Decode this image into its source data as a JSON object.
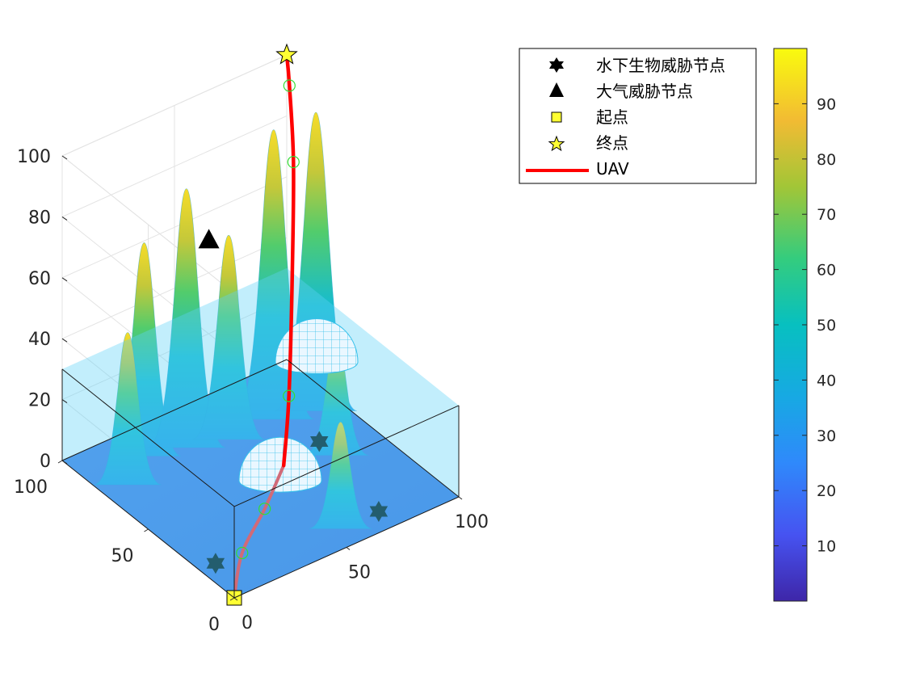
{
  "chart_data": {
    "type": "surface3d",
    "axes": {
      "x_ticks": [
        "0",
        "50",
        "100"
      ],
      "y_ticks": [
        "0",
        "50",
        "100"
      ],
      "z_ticks": [
        "0",
        "20",
        "40",
        "60",
        "80",
        "100"
      ],
      "xlim": [
        0,
        100
      ],
      "ylim": [
        0,
        100
      ],
      "zlim": [
        0,
        100
      ],
      "grid": true
    },
    "water_level": 30,
    "peaks": [
      {
        "x": 10,
        "y": 75,
        "height": 50
      },
      {
        "x": 25,
        "y": 85,
        "height": 70
      },
      {
        "x": 40,
        "y": 80,
        "height": 85
      },
      {
        "x": 55,
        "y": 75,
        "height": 67
      },
      {
        "x": 75,
        "y": 75,
        "height": 95
      },
      {
        "x": 90,
        "y": 70,
        "height": 98
      },
      {
        "x": 55,
        "y": 10,
        "height": 35
      },
      {
        "x": 80,
        "y": 45,
        "height": 40
      }
    ],
    "domes": [
      {
        "x": 75,
        "y": 50,
        "z": 30,
        "radius": 15
      },
      {
        "x": 55,
        "y": 45,
        "z": 0,
        "radius": 15
      }
    ],
    "underwater_threats": [
      {
        "x": 7,
        "y": 20,
        "z": 0
      },
      {
        "x": 72,
        "y": 10,
        "z": 0
      },
      {
        "x": 80,
        "y": 55,
        "z": 0
      }
    ],
    "air_threats": [
      {
        "x": 50,
        "y": 80,
        "z": 65
      }
    ],
    "start": {
      "x": 0,
      "y": 0,
      "z": 0
    },
    "end": {
      "x": 100,
      "y": 100,
      "z": 100
    },
    "uav_path": [
      {
        "x": 0,
        "y": 0,
        "z": 0
      },
      {
        "x": 15,
        "y": 15,
        "z": 3
      },
      {
        "x": 35,
        "y": 28,
        "z": 5
      },
      {
        "x": 45,
        "y": 30,
        "z": 15
      },
      {
        "x": 55,
        "y": 40,
        "z": 30
      },
      {
        "x": 68,
        "y": 55,
        "z": 60
      },
      {
        "x": 80,
        "y": 70,
        "z": 85
      },
      {
        "x": 92,
        "y": 88,
        "z": 98
      },
      {
        "x": 100,
        "y": 100,
        "z": 100
      }
    ],
    "waypoints": [
      {
        "x": 15,
        "y": 15,
        "z": 3
      },
      {
        "x": 35,
        "y": 28,
        "z": 5
      },
      {
        "x": 55,
        "y": 40,
        "z": 30
      },
      {
        "x": 80,
        "y": 70,
        "z": 85
      },
      {
        "x": 92,
        "y": 88,
        "z": 98
      }
    ],
    "legend": {
      "placement": "top-right",
      "items": [
        {
          "label": "水下生物威胁节点",
          "marker": "hexagram",
          "color": "#000000"
        },
        {
          "label": "大气威胁节点",
          "marker": "triangle",
          "color": "#000000"
        },
        {
          "label": "起点",
          "marker": "square",
          "color": "#ffff33"
        },
        {
          "label": "终点",
          "marker": "star",
          "color": "#ffff33"
        },
        {
          "label": "UAV",
          "marker": "line",
          "color": "#ff0000"
        }
      ]
    },
    "colorbar": {
      "colormap": "parula",
      "range": [
        0,
        100
      ],
      "ticks": [
        "10",
        "20",
        "30",
        "40",
        "50",
        "60",
        "70",
        "80",
        "90"
      ]
    }
  }
}
